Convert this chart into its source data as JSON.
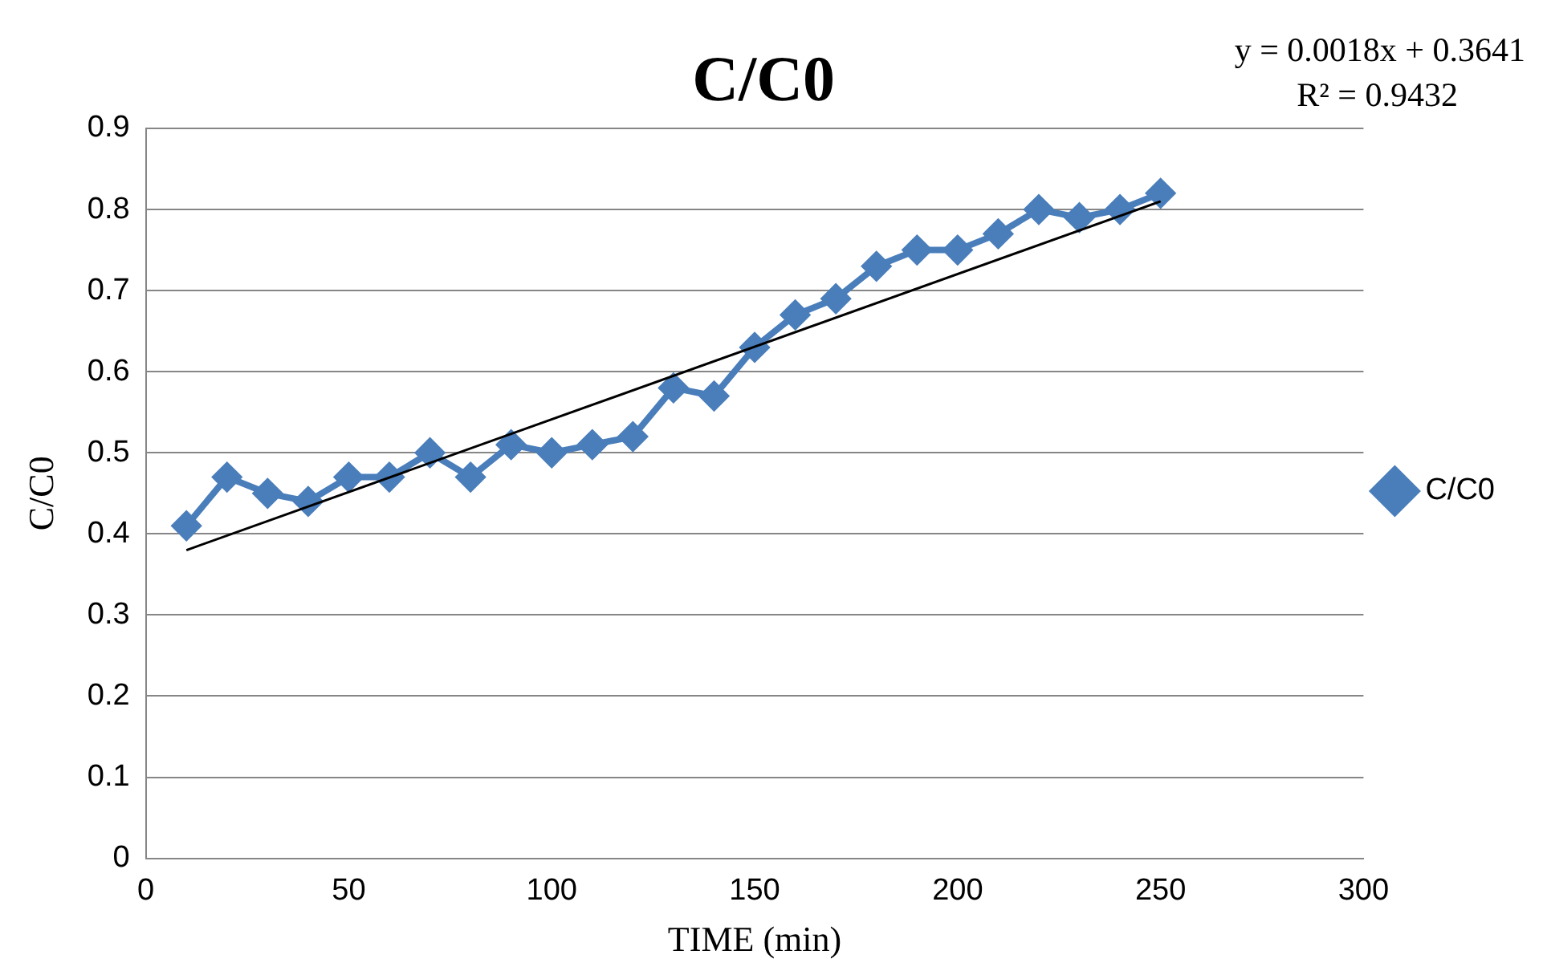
{
  "chart_data": {
    "type": "line",
    "title": "C/C0",
    "xlabel": "TIME (min)",
    "ylabel": "C/C0",
    "annotations": [
      "y = 0.0018x + 0.3641",
      "R² = 0.9432"
    ],
    "x": [
      10,
      20,
      30,
      40,
      50,
      60,
      70,
      80,
      90,
      100,
      110,
      120,
      130,
      140,
      150,
      160,
      170,
      180,
      190,
      200,
      210,
      220,
      230,
      240,
      250
    ],
    "series": [
      {
        "name": "C/C0",
        "color": "#4a7ebb",
        "marker": "diamond",
        "values": [
          0.41,
          0.47,
          0.45,
          0.44,
          0.47,
          0.47,
          0.5,
          0.47,
          0.51,
          0.5,
          0.51,
          0.52,
          0.58,
          0.57,
          0.63,
          0.67,
          0.69,
          0.73,
          0.75,
          0.75,
          0.77,
          0.8,
          0.79,
          0.8,
          0.82
        ]
      },
      {
        "type": "line",
        "color": "#000000",
        "marker": "none",
        "x": [
          10,
          250
        ],
        "values": [
          0.38,
          0.81
        ]
      }
    ],
    "xlim": [
      0,
      300
    ],
    "xticks": [
      0,
      50,
      100,
      150,
      200,
      250,
      300
    ],
    "ylim": [
      0,
      0.9
    ],
    "yticks": [
      0,
      0.1,
      0.2,
      0.3,
      0.4,
      0.5,
      0.6,
      0.7,
      0.8,
      0.9
    ],
    "grid": "y",
    "legend": "right"
  }
}
